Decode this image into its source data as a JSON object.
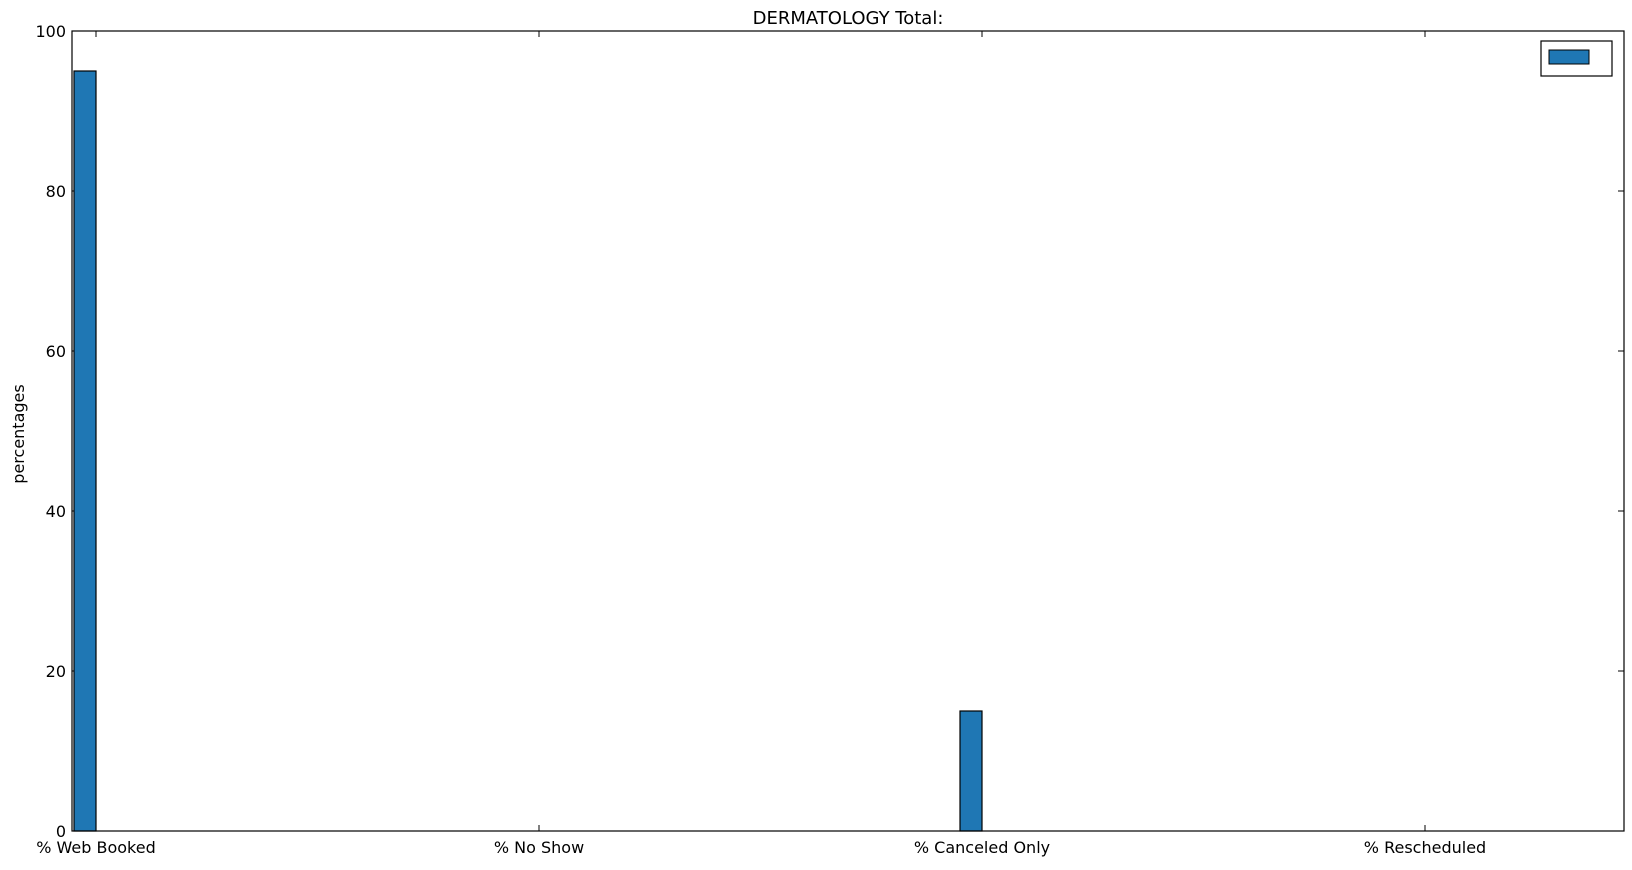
{
  "chart_data": {
    "type": "bar",
    "title": "DERMATOLOGY Total:",
    "xlabel": "",
    "ylabel": "percentages",
    "categories": [
      "% Web Booked",
      "% No Show",
      "% Canceled Only",
      "% Rescheduled"
    ],
    "series": [
      {
        "values": [
          95,
          0,
          15,
          0
        ]
      }
    ],
    "ylim": [
      0,
      100
    ],
    "yticks": [
      0,
      20,
      40,
      60,
      80,
      100
    ],
    "grid": false,
    "legend": {
      "position": "top-right",
      "entries": [
        ""
      ]
    },
    "colors": {
      "bar": "#1f77b4",
      "bar_edge": "#000000",
      "axis": "#000000",
      "background": "#ffffff"
    }
  }
}
